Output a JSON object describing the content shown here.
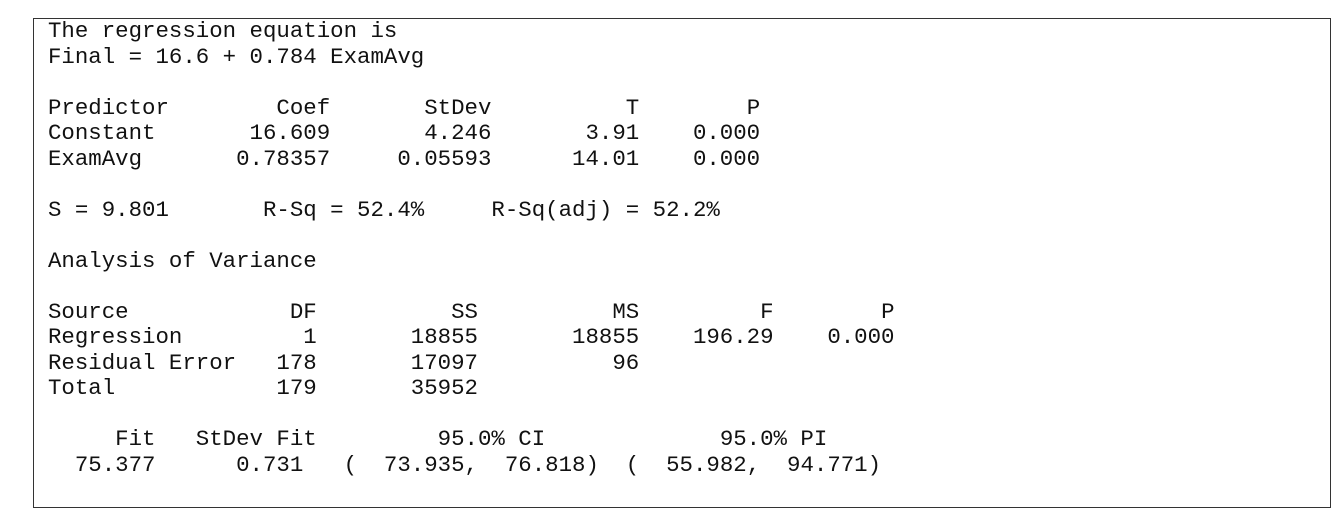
{
  "equation": {
    "intro": "The regression equation is",
    "formula": "Final = 16.6 + 0.784 ExamAvg"
  },
  "coef_table": {
    "header": [
      "Predictor",
      "Coef",
      "StDev",
      "T",
      "P"
    ],
    "rows": [
      [
        "Constant",
        "16.609",
        "4.246",
        "3.91",
        "0.000"
      ],
      [
        "ExamAvg",
        "0.78357",
        "0.05593",
        "14.01",
        "0.000"
      ]
    ]
  },
  "summary": [
    "S = 9.801",
    "R-Sq = 52.4%",
    "R-Sq(adj) = 52.2%"
  ],
  "anova": {
    "title": "Analysis of Variance",
    "header": [
      "Source",
      "DF",
      "SS",
      "MS",
      "F",
      "P"
    ],
    "rows": [
      [
        "Regression",
        "1",
        "18855",
        "18855",
        "196.29",
        "0.000"
      ],
      [
        "Residual Error",
        "178",
        "17097",
        "96"
      ],
      [
        "Total",
        "179",
        "35952"
      ]
    ]
  },
  "prediction": {
    "header": [
      "Fit",
      "StDev Fit",
      "95.0% CI",
      "95.0% PI"
    ],
    "row": [
      "75.377",
      "0.731",
      "(  73.935,  76.818)",
      "(  55.982,  94.771)"
    ]
  }
}
